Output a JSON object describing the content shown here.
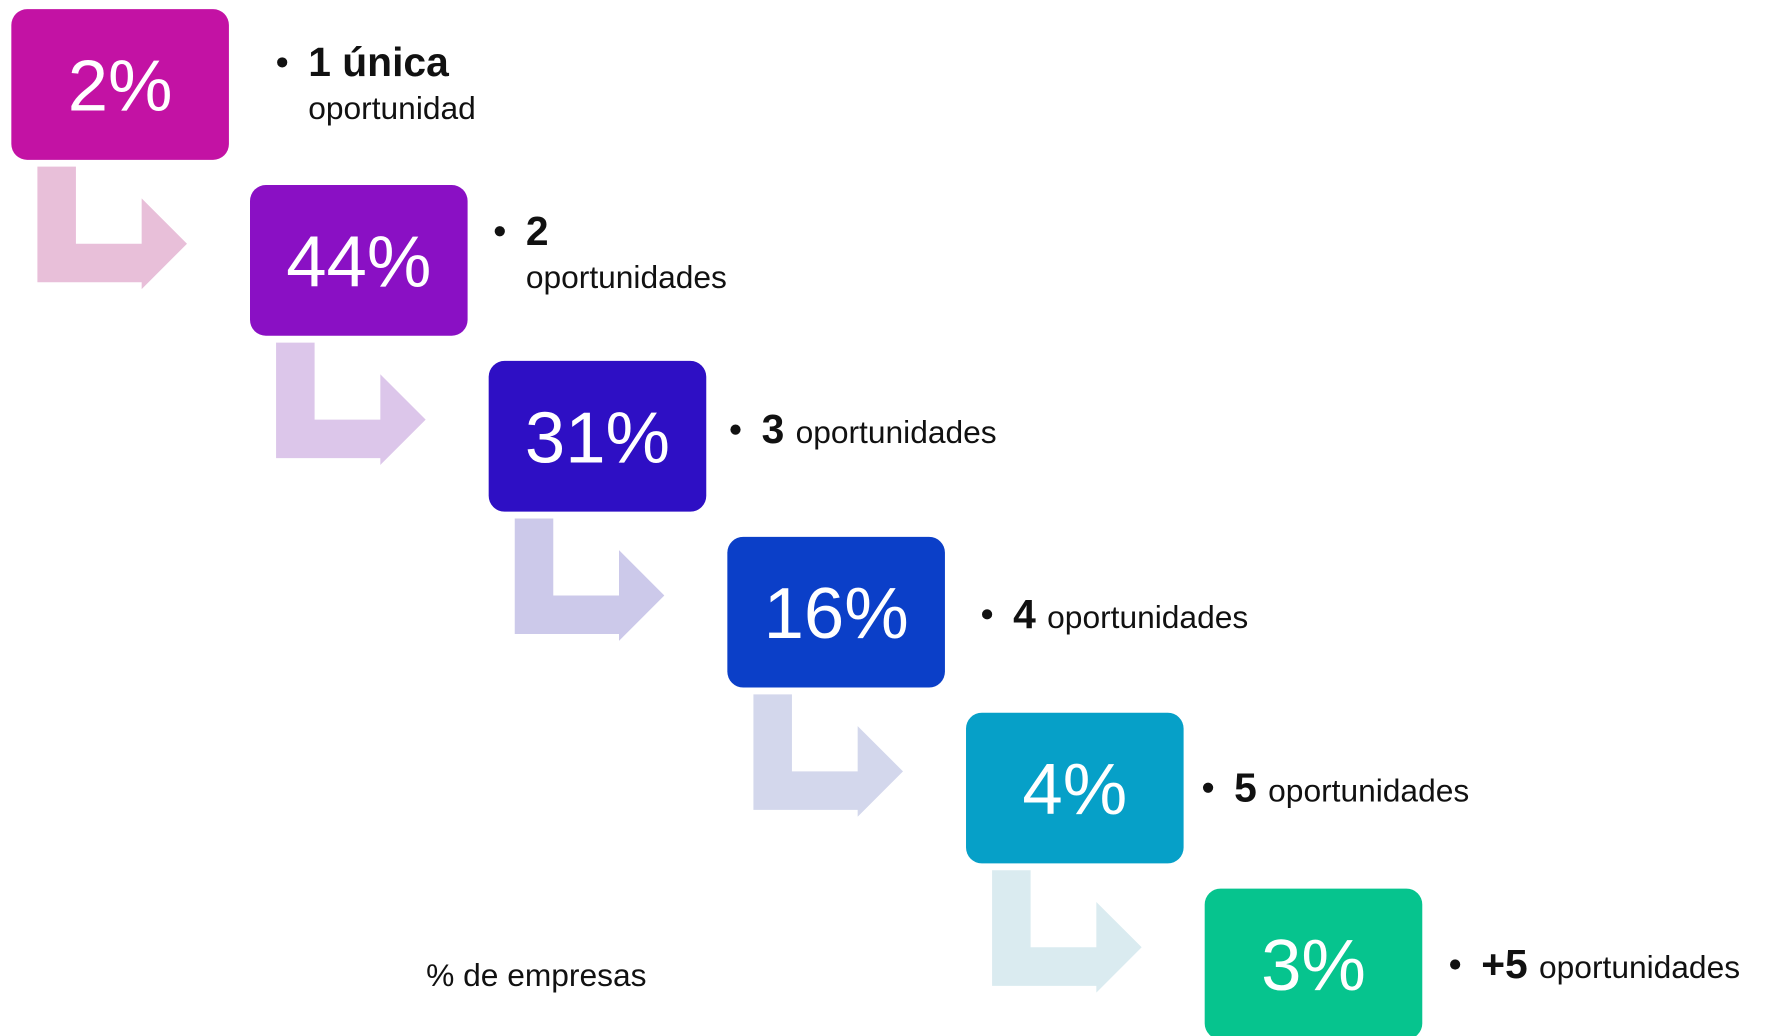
{
  "steps": [
    {
      "value": "2%",
      "bold": "1 única",
      "text": "oportunidad"
    },
    {
      "value": "44%",
      "bold": "2",
      "text": "oportunidades"
    },
    {
      "value": "31%",
      "bold": "3",
      "text": "oportunidades"
    },
    {
      "value": "16%",
      "bold": "4",
      "text": "oportunidades"
    },
    {
      "value": "4%",
      "bold": "5",
      "text": "oportunidades"
    },
    {
      "value": "3%",
      "bold": "+5",
      "text": "oportunidades"
    }
  ],
  "caption": "% de empresas"
}
